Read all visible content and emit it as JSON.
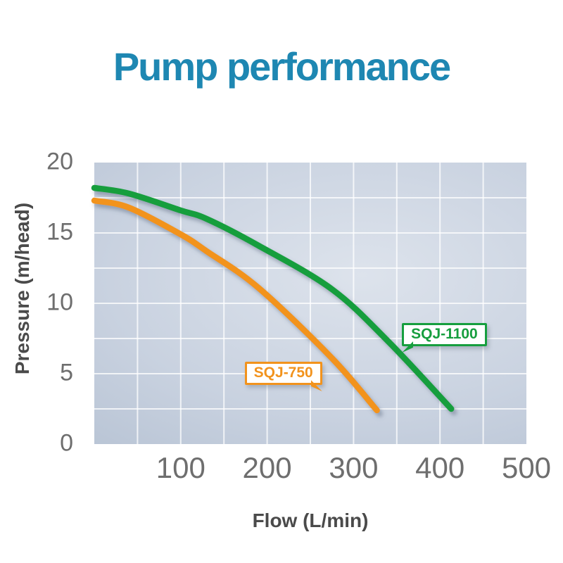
{
  "title": {
    "text": "Pump performance",
    "color": "#1e87b2"
  },
  "axes": {
    "tick_color": "#6e6e6e",
    "axis_title_color": "#4a4a4a"
  },
  "chart_data": {
    "type": "line",
    "title": "Pump performance",
    "xlabel": "Flow (L/min)",
    "ylabel": "Pressure (m/head)",
    "xlim": [
      0,
      500
    ],
    "ylim": [
      0,
      20
    ],
    "x_ticks": [
      100,
      200,
      300,
      400,
      500
    ],
    "y_ticks": [
      0,
      5,
      10,
      15,
      20
    ],
    "grid": {
      "on": true,
      "x_step": 50,
      "y_step": 2.5,
      "color": "#ffffff"
    },
    "legend_position": "inline-callouts",
    "series": [
      {
        "name": "SQJ-1100",
        "color": "#169e3e",
        "points": [
          [
            0,
            18.2
          ],
          [
            40,
            17.8
          ],
          [
            100,
            16.6
          ],
          [
            130,
            16.0
          ],
          [
            190,
            14.1
          ],
          [
            275,
            11.0
          ],
          [
            340,
            7.3
          ],
          [
            413,
            2.5
          ]
        ],
        "callout": {
          "label": "SQJ-1100",
          "x": 356,
          "y": 8.6,
          "tail": "bottom-left"
        }
      },
      {
        "name": "SQJ-750",
        "color": "#f2931d",
        "points": [
          [
            0,
            17.3
          ],
          [
            40,
            16.8
          ],
          [
            100,
            14.9
          ],
          [
            130,
            13.7
          ],
          [
            190,
            11.1
          ],
          [
            275,
            6.1
          ],
          [
            327,
            2.4
          ]
        ],
        "callout": {
          "label": "SQJ-750",
          "x": 174,
          "y": 5.85,
          "tail": "bottom-right"
        }
      }
    ]
  }
}
